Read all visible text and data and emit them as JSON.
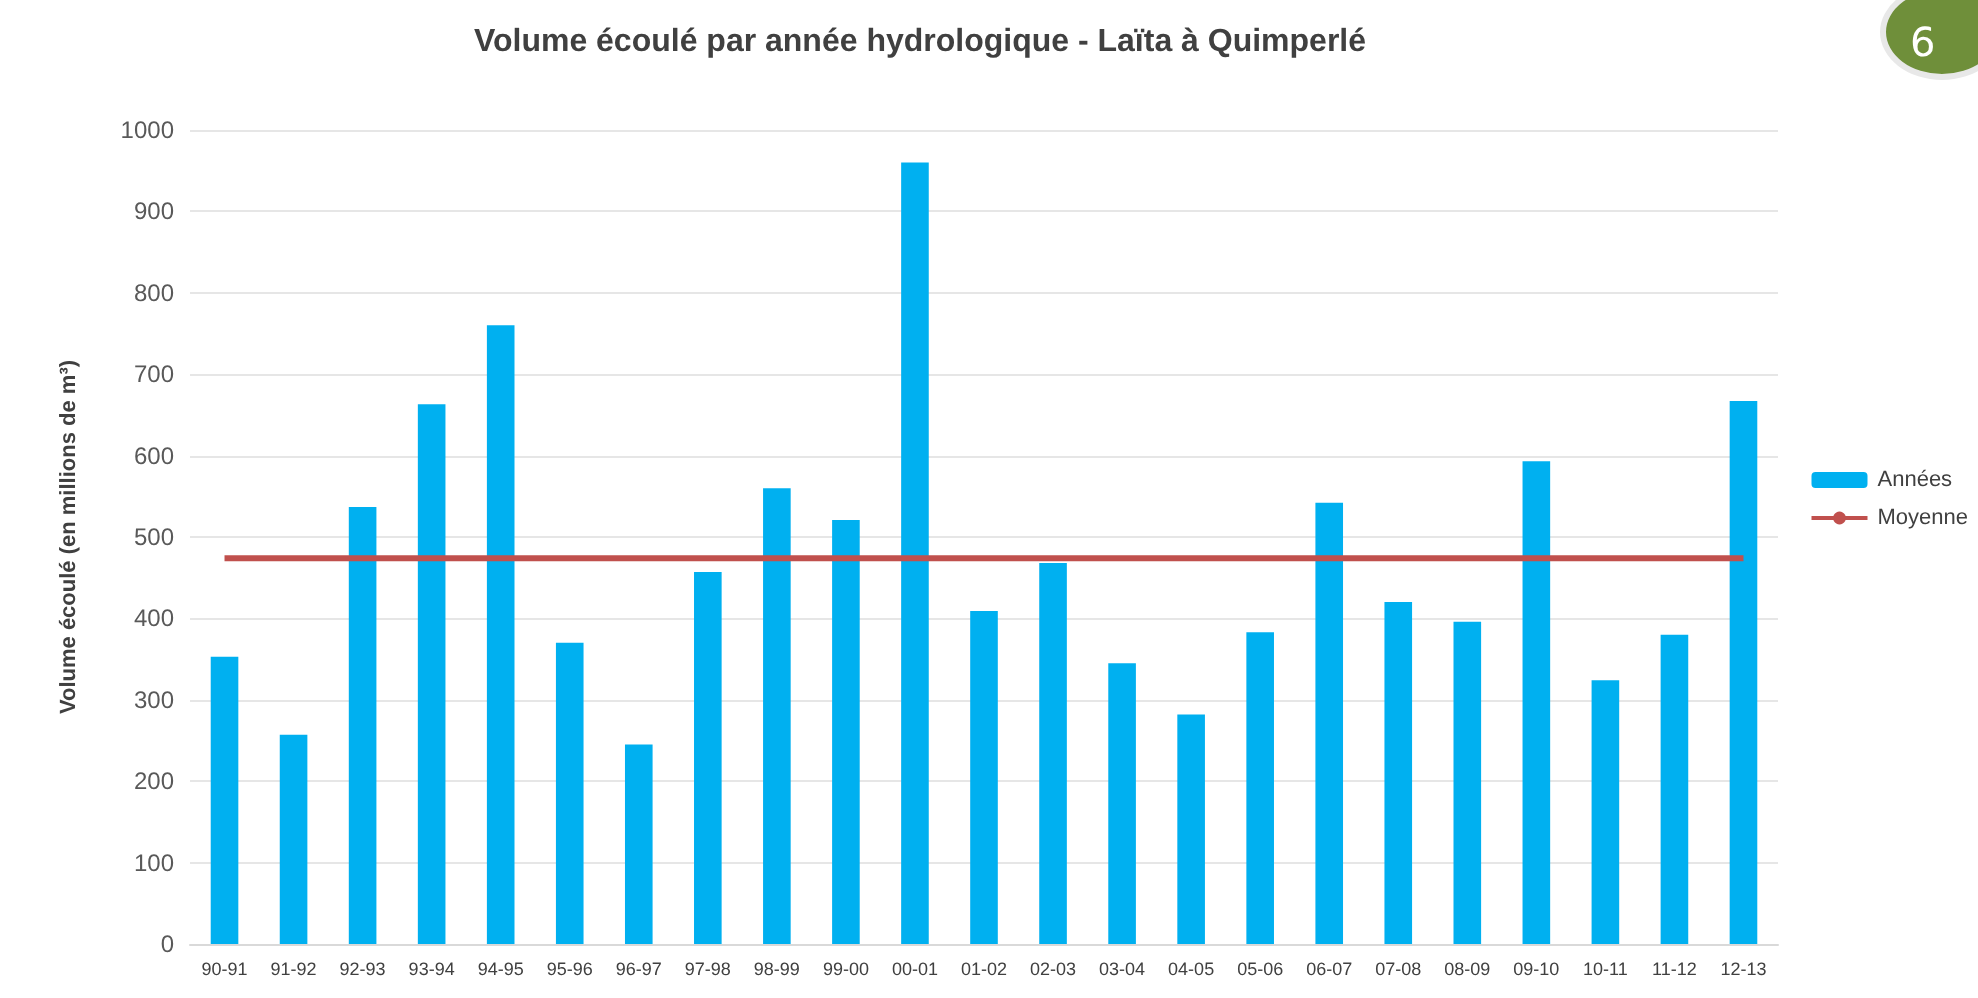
{
  "chart_data": {
    "type": "bar",
    "title": "Volume écoulé par année hydrologique - Laïta à Quimperlé",
    "ylabel": "Volume écoulé (en millions de m³)",
    "categories": [
      "90-91",
      "91-92",
      "92-93",
      "93-94",
      "94-95",
      "95-96",
      "96-97",
      "97-98",
      "98-99",
      "99-00",
      "00-01",
      "01-02",
      "02-03",
      "03-04",
      "04-05",
      "05-06",
      "06-07",
      "07-08",
      "08-09",
      "09-10",
      "10-11",
      "11-12",
      "12-13"
    ],
    "series": [
      {
        "name": "Années",
        "color": "#00b0f0",
        "values": [
          353,
          257,
          537,
          663,
          760,
          370,
          245,
          457,
          560,
          521,
          960,
          409,
          468,
          345,
          282,
          383,
          542,
          420,
          396,
          593,
          324,
          380,
          667
        ]
      },
      {
        "name": "Moyenne",
        "type": "line",
        "color": "#c0504d",
        "values": [
          474,
          474,
          474,
          474,
          474,
          474,
          474,
          474,
          474,
          474,
          474,
          474,
          474,
          474,
          474,
          474,
          474,
          474,
          474,
          474,
          474,
          474,
          474
        ]
      }
    ],
    "ylim": [
      0,
      1000
    ],
    "yticks": [
      0,
      100,
      200,
      300,
      400,
      500,
      600,
      700,
      800,
      900,
      1000
    ],
    "grid": "y",
    "legend": "right",
    "marker": "none",
    "annotations": [
      "6"
    ]
  }
}
